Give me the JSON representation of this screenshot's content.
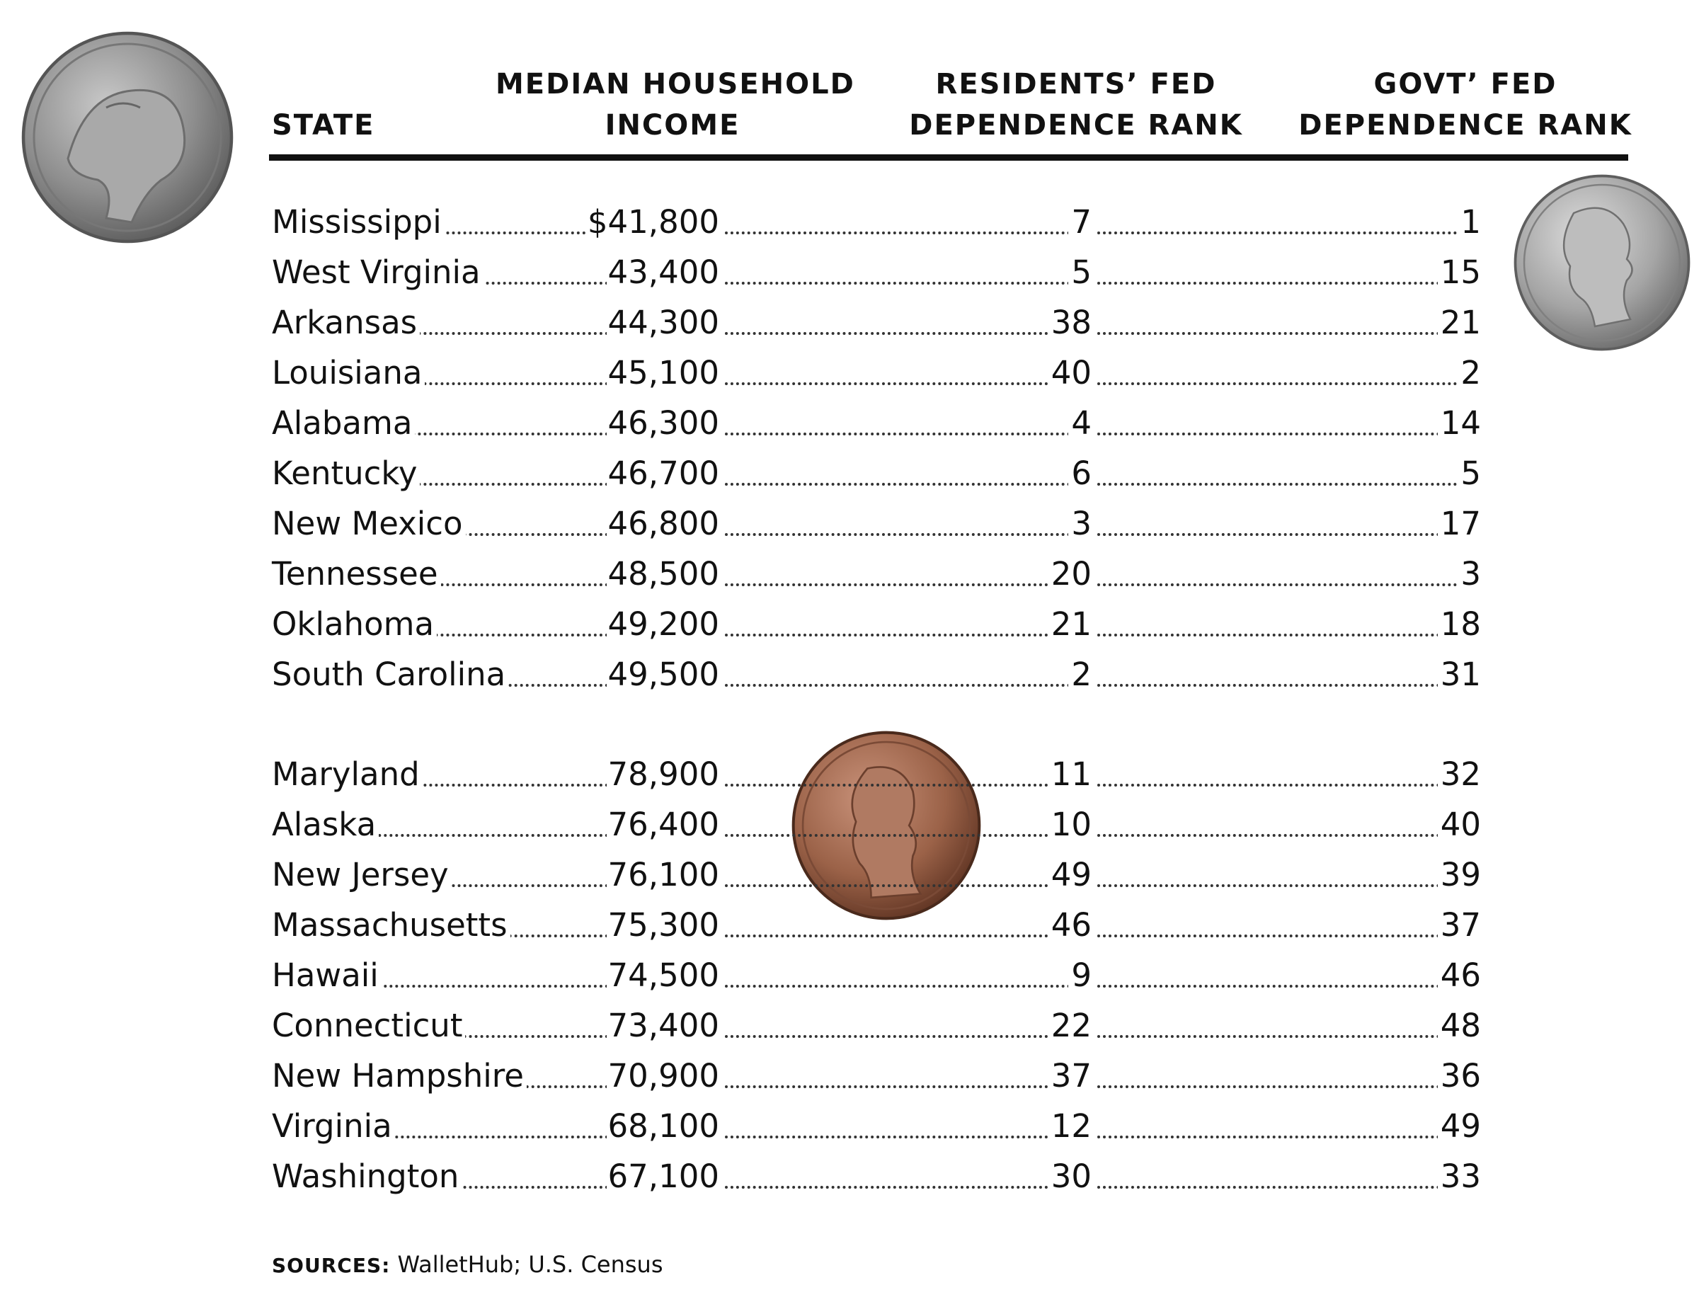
{
  "table": {
    "headers": {
      "state": "STATE",
      "income_line1": "MEDIAN HOUSEHOLD",
      "income_line2": "INCOME",
      "residents_line1": "RESIDENTS’ FED",
      "residents_line2": "DEPENDENCE RANK",
      "govt_line1": "GOVT’ FED",
      "govt_line2": "DEPENDENCE RANK"
    },
    "group1": [
      {
        "state": "Mississippi",
        "income": "$41,800",
        "residents_rank": "7",
        "govt_rank": "1"
      },
      {
        "state": "West Virginia",
        "income": "43,400",
        "residents_rank": "5",
        "govt_rank": "15"
      },
      {
        "state": "Arkansas",
        "income": "44,300",
        "residents_rank": "38",
        "govt_rank": "21"
      },
      {
        "state": "Louisiana",
        "income": "45,100",
        "residents_rank": "40",
        "govt_rank": "2"
      },
      {
        "state": "Alabama",
        "income": "46,300",
        "residents_rank": "4",
        "govt_rank": "14"
      },
      {
        "state": "Kentucky",
        "income": "46,700",
        "residents_rank": "6",
        "govt_rank": "5"
      },
      {
        "state": "New Mexico",
        "income": "46,800",
        "residents_rank": "3",
        "govt_rank": "17"
      },
      {
        "state": "Tennessee",
        "income": "48,500",
        "residents_rank": "20",
        "govt_rank": "3"
      },
      {
        "state": "Oklahoma",
        "income": "49,200",
        "residents_rank": "21",
        "govt_rank": "18"
      },
      {
        "state": "South Carolina",
        "income": "49,500",
        "residents_rank": "2",
        "govt_rank": "31"
      }
    ],
    "group2": [
      {
        "state": "Maryland",
        "income": "78,900",
        "residents_rank": "11",
        "govt_rank": "32"
      },
      {
        "state": "Alaska",
        "income": "76,400",
        "residents_rank": "10",
        "govt_rank": "40"
      },
      {
        "state": "New Jersey",
        "income": "76,100",
        "residents_rank": "49",
        "govt_rank": "39"
      },
      {
        "state": "Massachusetts",
        "income": "75,300",
        "residents_rank": "46",
        "govt_rank": "37"
      },
      {
        "state": "Hawaii",
        "income": "74,500",
        "residents_rank": "9",
        "govt_rank": "46"
      },
      {
        "state": "Connecticut",
        "income": "73,400",
        "residents_rank": "22",
        "govt_rank": "48"
      },
      {
        "state": "New Hampshire",
        "income": "70,900",
        "residents_rank": "37",
        "govt_rank": "36"
      },
      {
        "state": "Virginia",
        "income": "68,100",
        "residents_rank": "12",
        "govt_rank": "49"
      },
      {
        "state": "Washington",
        "income": "67,100",
        "residents_rank": "30",
        "govt_rank": "33"
      }
    ]
  },
  "sources": {
    "label": "SOURCES:",
    "text": "WalletHub; U.S. Census"
  },
  "colors": {
    "ink": "#111111",
    "nickel": "#8c8c8c",
    "dime": "#a8a8a8",
    "penny": "#a0664a"
  },
  "icons": [
    "nickel-coin-icon",
    "dime-coin-icon",
    "penny-coin-icon"
  ]
}
